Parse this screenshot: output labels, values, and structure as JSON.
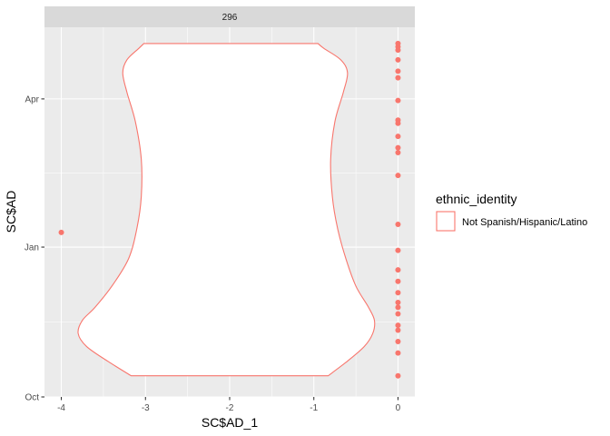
{
  "chart_data": {
    "type": "violin",
    "facet_label": "296",
    "xlabel": "SC$AD_1",
    "ylabel": "SC$AD",
    "xlim": [
      -4.2,
      0.2
    ],
    "ylim": [
      "2019-10-01",
      "2020-05-15"
    ],
    "x_ticks": [
      {
        "value": -4,
        "label": "-4"
      },
      {
        "value": -3,
        "label": "-3"
      },
      {
        "value": -2,
        "label": "-2"
      },
      {
        "value": -1,
        "label": "-1"
      },
      {
        "value": 0,
        "label": "0"
      }
    ],
    "y_ticks": [
      {
        "value": "2019-10-01",
        "label": "Oct"
      },
      {
        "value": "2020-01-01",
        "label": "Jan"
      },
      {
        "value": "2020-04-01",
        "label": "Apr"
      }
    ],
    "grid": true,
    "legend": {
      "title": "ethnic_identity",
      "position": "right",
      "entries": [
        {
          "label": "Not Spanish/Hispanic/Latino",
          "color": "#F8766D"
        }
      ]
    },
    "series_color": "#F8766D",
    "violin": {
      "y_range": [
        "2019-10-14",
        "2020-05-05"
      ],
      "profile": [
        {
          "y": "2019-10-14",
          "left": -3.17,
          "right": -0.83
        },
        {
          "y": "2019-10-23",
          "left": -3.45,
          "right": -0.6
        },
        {
          "y": "2019-11-01",
          "left": -3.7,
          "right": -0.4
        },
        {
          "y": "2019-11-09",
          "left": -3.8,
          "right": -0.3
        },
        {
          "y": "2019-11-17",
          "left": -3.75,
          "right": -0.28
        },
        {
          "y": "2019-11-25",
          "left": -3.6,
          "right": -0.35
        },
        {
          "y": "2019-12-08",
          "left": -3.4,
          "right": -0.5
        },
        {
          "y": "2019-12-25",
          "left": -3.2,
          "right": -0.62
        },
        {
          "y": "2020-01-13",
          "left": -3.1,
          "right": -0.72
        },
        {
          "y": "2020-02-01",
          "left": -3.05,
          "right": -0.78
        },
        {
          "y": "2020-02-24",
          "left": -3.05,
          "right": -0.8
        },
        {
          "y": "2020-03-18",
          "left": -3.12,
          "right": -0.75
        },
        {
          "y": "2020-04-05",
          "left": -3.22,
          "right": -0.65
        },
        {
          "y": "2020-04-17",
          "left": -3.27,
          "right": -0.6
        },
        {
          "y": "2020-04-25",
          "left": -3.22,
          "right": -0.68
        },
        {
          "y": "2020-05-02",
          "left": -3.08,
          "right": -0.88
        },
        {
          "y": "2020-05-05",
          "left": -3.02,
          "right": -0.95
        }
      ]
    },
    "points": [
      {
        "x": -4,
        "y": "2020-01-10"
      },
      {
        "x": 0,
        "y": "2019-10-14"
      },
      {
        "x": 0,
        "y": "2019-10-28"
      },
      {
        "x": 0,
        "y": "2019-11-04"
      },
      {
        "x": 0,
        "y": "2019-11-11"
      },
      {
        "x": 0,
        "y": "2019-11-14"
      },
      {
        "x": 0,
        "y": "2019-11-21"
      },
      {
        "x": 0,
        "y": "2019-11-25"
      },
      {
        "x": 0,
        "y": "2019-11-28"
      },
      {
        "x": 0,
        "y": "2019-12-04"
      },
      {
        "x": 0,
        "y": "2019-12-11"
      },
      {
        "x": 0,
        "y": "2019-12-18"
      },
      {
        "x": 0,
        "y": "2019-12-30"
      },
      {
        "x": 0,
        "y": "2020-01-15"
      },
      {
        "x": 0,
        "y": "2020-02-14"
      },
      {
        "x": 0,
        "y": "2020-02-28"
      },
      {
        "x": 0,
        "y": "2020-03-02"
      },
      {
        "x": 0,
        "y": "2020-03-09"
      },
      {
        "x": 0,
        "y": "2020-03-17"
      },
      {
        "x": 0,
        "y": "2020-03-19"
      },
      {
        "x": 0,
        "y": "2020-03-31"
      },
      {
        "x": 0,
        "y": "2020-04-14"
      },
      {
        "x": 0,
        "y": "2020-04-18"
      },
      {
        "x": 0,
        "y": "2020-04-25"
      },
      {
        "x": 0,
        "y": "2020-05-01"
      },
      {
        "x": 0,
        "y": "2020-05-03"
      },
      {
        "x": 0,
        "y": "2020-05-05"
      }
    ]
  }
}
